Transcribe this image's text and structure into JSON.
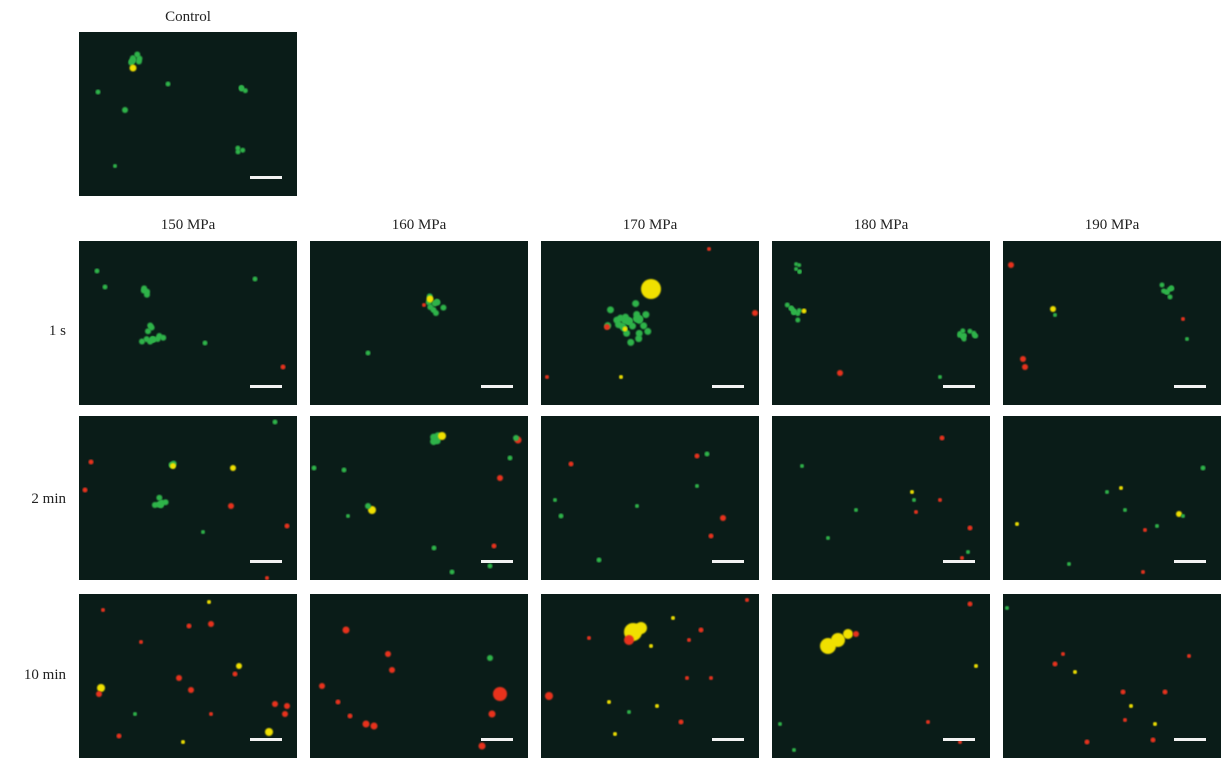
{
  "control_label": "Control",
  "pressures": [
    "150 MPa",
    "160 MPa",
    "170 MPa",
    "180 MPa",
    "190 MPa"
  ],
  "times": [
    "1 s",
    "2 min",
    "10 min"
  ],
  "colors": {
    "background": "#0a1c18",
    "live_stain": "#2fb34a",
    "dead_stain": "#e8321e",
    "overlap": "#f0e000",
    "scale_bar": "#f2f2f2"
  }
}
